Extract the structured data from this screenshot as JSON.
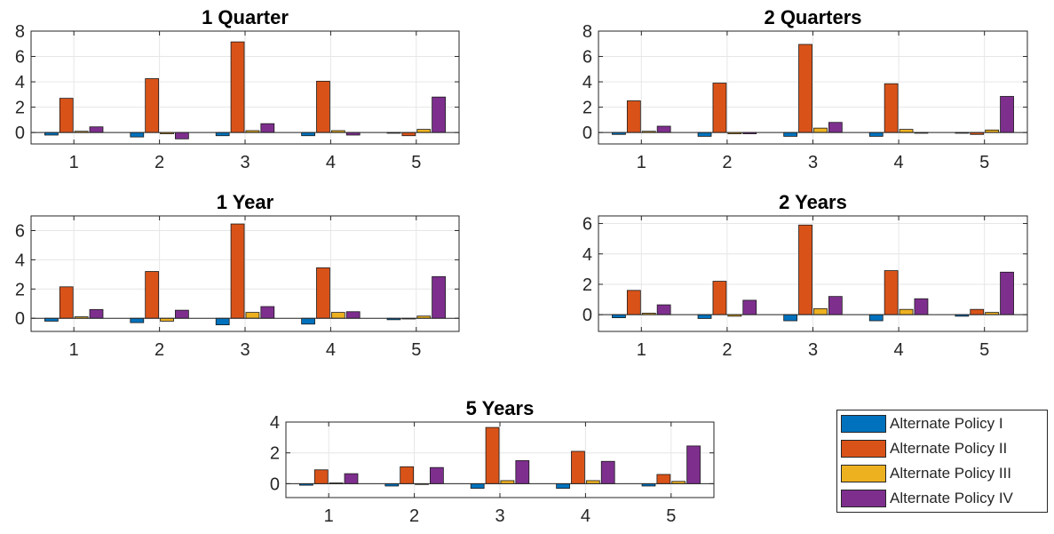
{
  "colors": {
    "series": [
      "#0072BD",
      "#D95319",
      "#EDB120",
      "#7E2F8E"
    ],
    "axis": "#262626",
    "grid": "#e6e6e6"
  },
  "legend": {
    "placement": "bottom-right",
    "items": [
      {
        "label": "Alternate Policy I",
        "color": "#0072BD"
      },
      {
        "label": "Alternate Policy II",
        "color": "#D95319"
      },
      {
        "label": "Alternate Policy III",
        "color": "#EDB120"
      },
      {
        "label": "Alternate Policy IV",
        "color": "#7E2F8E"
      }
    ]
  },
  "chart_data": [
    {
      "type": "bar",
      "title": "1 Quarter",
      "categories": [
        "1",
        "2",
        "3",
        "4",
        "5"
      ],
      "ylim": [
        -0.9,
        8
      ],
      "yticks": [
        0,
        2,
        4,
        6,
        8
      ],
      "grid": true,
      "series": [
        {
          "name": "Alternate Policy I",
          "values": [
            -0.2,
            -0.35,
            -0.25,
            -0.25,
            -0.05
          ]
        },
        {
          "name": "Alternate Policy II",
          "values": [
            2.7,
            4.25,
            7.15,
            4.05,
            -0.25
          ]
        },
        {
          "name": "Alternate Policy III",
          "values": [
            0.1,
            -0.1,
            0.15,
            0.15,
            0.25
          ]
        },
        {
          "name": "Alternate Policy IV",
          "values": [
            0.45,
            -0.5,
            0.7,
            -0.2,
            2.8
          ]
        }
      ]
    },
    {
      "type": "bar",
      "title": "2 Quarters",
      "categories": [
        "1",
        "2",
        "3",
        "4",
        "5"
      ],
      "ylim": [
        -0.9,
        8
      ],
      "yticks": [
        0,
        2,
        4,
        6,
        8
      ],
      "grid": true,
      "series": [
        {
          "name": "Alternate Policy I",
          "values": [
            -0.15,
            -0.3,
            -0.3,
            -0.3,
            -0.05
          ]
        },
        {
          "name": "Alternate Policy II",
          "values": [
            2.5,
            3.9,
            6.95,
            3.85,
            -0.15
          ]
        },
        {
          "name": "Alternate Policy III",
          "values": [
            0.1,
            -0.1,
            0.35,
            0.25,
            0.2
          ]
        },
        {
          "name": "Alternate Policy IV",
          "values": [
            0.5,
            -0.1,
            0.8,
            0.0,
            2.85
          ]
        }
      ]
    },
    {
      "type": "bar",
      "title": "1 Year",
      "categories": [
        "1",
        "2",
        "3",
        "4",
        "5"
      ],
      "ylim": [
        -0.9,
        7
      ],
      "yticks": [
        0,
        2,
        4,
        6
      ],
      "grid": true,
      "series": [
        {
          "name": "Alternate Policy I",
          "values": [
            -0.2,
            -0.3,
            -0.45,
            -0.4,
            -0.1
          ]
        },
        {
          "name": "Alternate Policy II",
          "values": [
            2.15,
            3.2,
            6.45,
            3.45,
            0.0
          ]
        },
        {
          "name": "Alternate Policy III",
          "values": [
            0.1,
            -0.2,
            0.4,
            0.4,
            0.15
          ]
        },
        {
          "name": "Alternate Policy IV",
          "values": [
            0.6,
            0.55,
            0.8,
            0.45,
            2.85
          ]
        }
      ]
    },
    {
      "type": "bar",
      "title": "2 Years",
      "categories": [
        "1",
        "2",
        "3",
        "4",
        "5"
      ],
      "ylim": [
        -1.1,
        6.5
      ],
      "yticks": [
        0,
        2,
        4,
        6
      ],
      "grid": true,
      "series": [
        {
          "name": "Alternate Policy I",
          "values": [
            -0.2,
            -0.25,
            -0.4,
            -0.4,
            -0.1
          ]
        },
        {
          "name": "Alternate Policy II",
          "values": [
            1.6,
            2.2,
            5.9,
            2.9,
            0.35
          ]
        },
        {
          "name": "Alternate Policy III",
          "values": [
            0.1,
            -0.1,
            0.4,
            0.35,
            0.15
          ]
        },
        {
          "name": "Alternate Policy IV",
          "values": [
            0.65,
            0.95,
            1.2,
            1.05,
            2.8
          ]
        }
      ]
    },
    {
      "type": "bar",
      "title": "5 Years",
      "categories": [
        "1",
        "2",
        "3",
        "4",
        "5"
      ],
      "ylim": [
        -0.9,
        4
      ],
      "yticks": [
        0,
        2,
        4
      ],
      "grid": true,
      "series": [
        {
          "name": "Alternate Policy I",
          "values": [
            -0.1,
            -0.15,
            -0.3,
            -0.3,
            -0.15
          ]
        },
        {
          "name": "Alternate Policy II",
          "values": [
            0.9,
            1.1,
            3.65,
            2.1,
            0.6
          ]
        },
        {
          "name": "Alternate Policy III",
          "values": [
            0.05,
            -0.05,
            0.2,
            0.2,
            0.15
          ]
        },
        {
          "name": "Alternate Policy IV",
          "values": [
            0.65,
            1.05,
            1.5,
            1.45,
            2.45
          ]
        }
      ]
    }
  ]
}
